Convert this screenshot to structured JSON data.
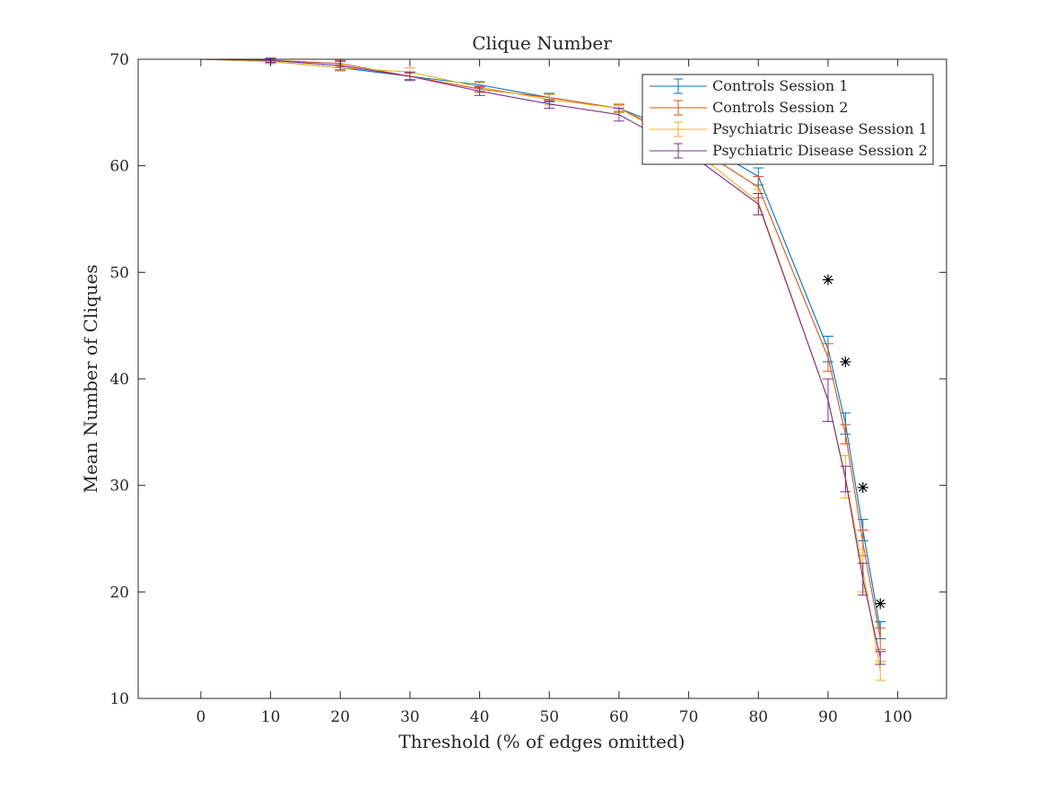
{
  "chart_data": {
    "type": "line",
    "title": "Clique Number",
    "xlabel": "Threshold (% of edges omitted)",
    "ylabel": "Mean Number of Cliques",
    "xlim": [
      -9,
      107
    ],
    "ylim": [
      10,
      70
    ],
    "xticks": [
      0,
      10,
      20,
      30,
      40,
      50,
      60,
      70,
      80,
      90,
      100
    ],
    "yticks": [
      10,
      20,
      30,
      40,
      50,
      60,
      70
    ],
    "grid": false,
    "legend_position": "top-right",
    "series": [
      {
        "name": "Controls Session 1",
        "color": "#0072BD",
        "x": [
          0,
          10,
          20,
          30,
          40,
          50,
          60,
          70,
          80,
          90,
          92.5,
          95,
          97.5
        ],
        "y": [
          70,
          69.8,
          69.2,
          68.4,
          67.6,
          66.4,
          65.4,
          62.8,
          59.0,
          42.8,
          35.8,
          25.8,
          16.4
        ],
        "err": [
          0,
          0.2,
          0.3,
          0.3,
          0.3,
          0.4,
          0.4,
          0.6,
          0.8,
          1.2,
          1.0,
          1.0,
          0.8
        ]
      },
      {
        "name": "Controls Session 2",
        "color": "#D95319",
        "x": [
          0,
          10,
          20,
          30,
          40,
          50,
          60,
          70,
          80,
          90,
          92.5,
          95,
          97.5
        ],
        "y": [
          70,
          69.9,
          69.6,
          68.4,
          67.2,
          66.4,
          65.4,
          62.2,
          58.0,
          42.0,
          34.8,
          24.6,
          15.6
        ],
        "err": [
          0,
          0.2,
          0.3,
          0.3,
          0.3,
          0.3,
          0.3,
          0.6,
          1.0,
          1.3,
          0.9,
          1.2,
          1.0
        ]
      },
      {
        "name": "Psychiatric Disease Session 1",
        "color": "#EDB120",
        "x": [
          0,
          10,
          20,
          30,
          40,
          50,
          60,
          70,
          80,
          90,
          92.5,
          95,
          97.5
        ],
        "y": [
          70,
          69.8,
          69.2,
          68.8,
          67.4,
          66.2,
          65.4,
          61.8,
          56.6,
          38.0,
          30.8,
          22.0,
          12.6
        ],
        "err": [
          0,
          0.2,
          0.3,
          0.4,
          0.4,
          0.5,
          0.4,
          0.8,
          1.2,
          2.0,
          2.0,
          2.0,
          0.9
        ]
      },
      {
        "name": "Psychiatric Disease Session 2",
        "color": "#7E2F8E",
        "x": [
          0,
          10,
          20,
          30,
          40,
          50,
          60,
          70,
          80,
          90,
          92.5,
          95,
          97.5
        ],
        "y": [
          70,
          69.9,
          69.4,
          68.4,
          67.0,
          65.8,
          64.8,
          61.2,
          56.4,
          38.0,
          30.6,
          21.2,
          13.8
        ],
        "err": [
          0,
          0.2,
          0.4,
          0.4,
          0.4,
          0.4,
          0.6,
          0.8,
          1.0,
          2.0,
          1.2,
          1.5,
          0.6
        ]
      }
    ],
    "annotations": {
      "marker": "asterisk",
      "color": "#000000",
      "points": [
        {
          "x": 90,
          "y": 49.3
        },
        {
          "x": 92.5,
          "y": 41.6
        },
        {
          "x": 95,
          "y": 29.8
        },
        {
          "x": 97.5,
          "y": 18.9
        }
      ]
    }
  }
}
